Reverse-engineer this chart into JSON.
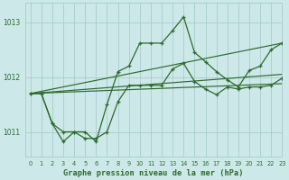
{
  "title": "Graphe pression niveau de la mer (hPa)",
  "background_color": "#cde8e8",
  "grid_color": "#a8cccc",
  "line_color": "#2d6a2d",
  "text_color": "#2d6a2d",
  "xlim": [
    -0.5,
    23
  ],
  "ylim": [
    1010.55,
    1013.35
  ],
  "yticks": [
    1011,
    1012,
    1013
  ],
  "xticks": [
    0,
    1,
    2,
    3,
    4,
    5,
    6,
    7,
    8,
    9,
    10,
    11,
    12,
    13,
    14,
    15,
    16,
    17,
    18,
    19,
    20,
    21,
    22,
    23
  ],
  "series": [
    {
      "x": [
        0,
        1,
        2,
        3,
        4,
        5,
        6,
        7,
        8,
        9,
        10,
        11,
        12,
        13,
        14,
        15,
        16,
        17,
        18,
        19,
        20,
        21,
        22,
        23
      ],
      "y": [
        1011.7,
        1011.7,
        1011.15,
        1010.82,
        1011.0,
        1011.0,
        1010.82,
        1011.5,
        1012.1,
        1012.2,
        1012.62,
        1012.62,
        1012.62,
        1012.85,
        1013.1,
        1012.45,
        1012.28,
        1012.1,
        1011.95,
        1011.82,
        1012.12,
        1012.2,
        1012.5,
        1012.62
      ]
    },
    {
      "x": [
        0,
        1,
        2,
        3,
        4,
        5,
        6,
        7,
        8,
        9,
        10,
        11,
        12,
        13,
        14,
        15,
        16,
        17,
        18,
        19,
        20,
        21,
        22,
        23
      ],
      "y": [
        1011.7,
        1011.7,
        1011.15,
        1011.0,
        1011.0,
        1010.88,
        1010.88,
        1011.0,
        1011.55,
        1011.85,
        1011.85,
        1011.85,
        1011.85,
        1012.15,
        1012.25,
        1011.92,
        1011.78,
        1011.68,
        1011.82,
        1011.78,
        1011.82,
        1011.82,
        1011.85,
        1011.98
      ]
    },
    {
      "x": [
        0,
        23
      ],
      "y": [
        1011.7,
        1012.62
      ]
    },
    {
      "x": [
        0,
        23
      ],
      "y": [
        1011.7,
        1012.05
      ]
    },
    {
      "x": [
        0,
        23
      ],
      "y": [
        1011.7,
        1011.88
      ]
    }
  ]
}
